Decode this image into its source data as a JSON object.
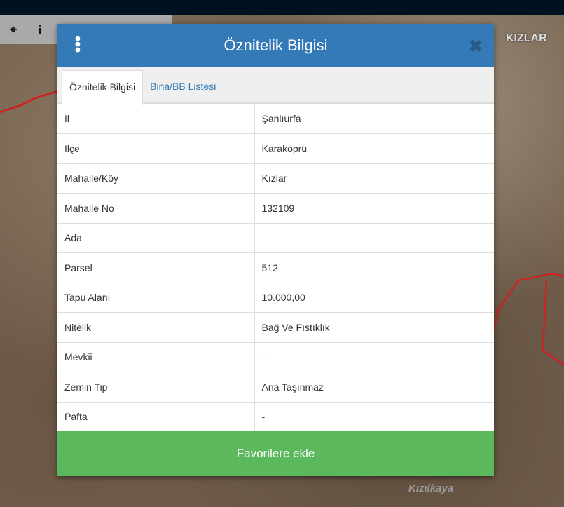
{
  "map": {
    "labels": [
      "KIZLAR",
      "Kızılkaya"
    ]
  },
  "toolbar": {
    "icons": [
      "crosshair-icon",
      "info-icon"
    ],
    "info_glyph": "i",
    "crosshair_glyph": "⌖"
  },
  "modal": {
    "title": "Öznitelik Bilgisi",
    "close_glyph": "✖",
    "tabs": [
      {
        "label": "Öznitelik Bilgisi",
        "active": true
      },
      {
        "label": "Bina/BB Listesi",
        "active": false
      }
    ],
    "rows": [
      {
        "label": "İl",
        "value": "Şanlıurfa"
      },
      {
        "label": "İlçe",
        "value": "Karaköprü"
      },
      {
        "label": "Mahalle/Köy",
        "value": "Kızlar"
      },
      {
        "label": "Mahalle No",
        "value": "132109"
      },
      {
        "label": "Ada",
        "value": ""
      },
      {
        "label": "Parsel",
        "value": "512"
      },
      {
        "label": "Tapu Alanı",
        "value": "10.000,00"
      },
      {
        "label": "Nitelik",
        "value": "Bağ Ve Fıstıklık"
      },
      {
        "label": "Mevkii",
        "value": "-"
      },
      {
        "label": "Zemin Tip",
        "value": "Ana Taşınmaz"
      },
      {
        "label": "Pafta",
        "value": "-"
      }
    ],
    "favorite_button": "Favorilere ekle"
  },
  "colors": {
    "header": "#337ab7",
    "button": "#5cb85c",
    "boundary": "#cc2222"
  }
}
